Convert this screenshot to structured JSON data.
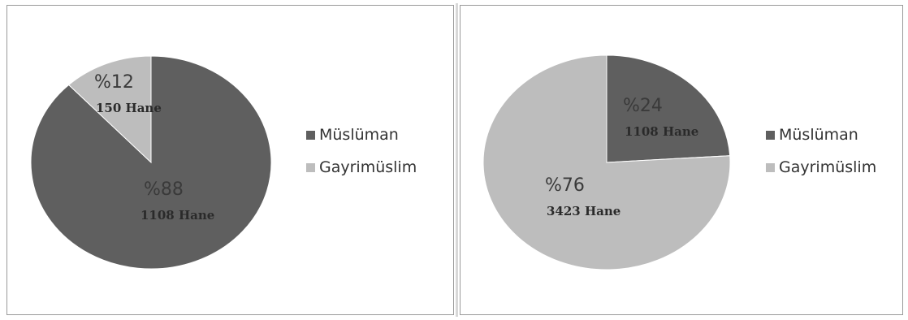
{
  "colors": {
    "muslim": "#5f5f5f",
    "non_muslim": "#bdbdbd"
  },
  "chart_data": [
    {
      "type": "pie",
      "legend_position": "right",
      "legend": [
        "Müslüman",
        "Gayrimüslim"
      ],
      "slices": [
        {
          "name": "Müslüman",
          "value": 88,
          "percent_label": "%88",
          "count_label": "1108 Hane"
        },
        {
          "name": "Gayrimüslim",
          "value": 12,
          "percent_label": "%12",
          "count_label": "150 Hane"
        }
      ]
    },
    {
      "type": "pie",
      "legend_position": "right",
      "legend": [
        "Müslüman",
        "Gayrimüslim"
      ],
      "slices": [
        {
          "name": "Müslüman",
          "value": 24,
          "percent_label": "%24",
          "count_label": "1108 Hane"
        },
        {
          "name": "Gayrimüslim",
          "value": 76,
          "percent_label": "%76",
          "count_label": "3423 Hane"
        }
      ]
    }
  ]
}
